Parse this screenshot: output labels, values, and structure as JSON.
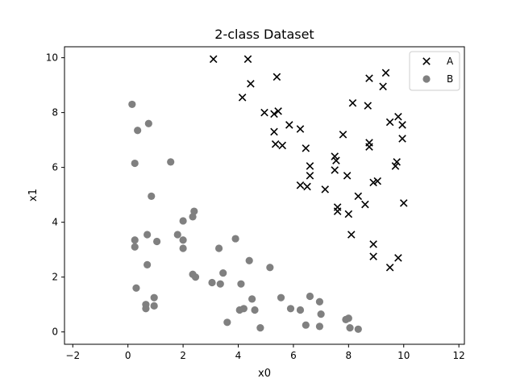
{
  "chart_data": {
    "type": "scatter",
    "title": "2-class Dataset",
    "xlabel": "x0",
    "ylabel": "x1",
    "xlim": [
      -2.3,
      12.2
    ],
    "ylim": [
      -0.45,
      10.4
    ],
    "xticks": [
      -2,
      0,
      2,
      4,
      6,
      8,
      10,
      12
    ],
    "yticks": [
      0,
      2,
      4,
      6,
      8,
      10
    ],
    "xtick_labels": [
      "−2",
      "0",
      "2",
      "4",
      "6",
      "8",
      "10",
      "12"
    ],
    "ytick_labels": [
      "0",
      "2",
      "4",
      "6",
      "8",
      "10"
    ],
    "grid": false,
    "legend_position": "top-right",
    "series": [
      {
        "name": "A",
        "marker": "x",
        "color": "#000000",
        "points": [
          [
            3.1,
            9.95
          ],
          [
            4.35,
            9.95
          ],
          [
            4.15,
            8.55
          ],
          [
            4.45,
            9.05
          ],
          [
            5.4,
            9.3
          ],
          [
            4.95,
            8.0
          ],
          [
            5.3,
            7.95
          ],
          [
            5.45,
            8.05
          ],
          [
            5.85,
            7.55
          ],
          [
            6.25,
            7.4
          ],
          [
            5.3,
            7.3
          ],
          [
            5.35,
            6.85
          ],
          [
            5.6,
            6.8
          ],
          [
            6.45,
            6.7
          ],
          [
            6.6,
            6.05
          ],
          [
            6.6,
            5.7
          ],
          [
            6.25,
            5.35
          ],
          [
            6.5,
            5.3
          ],
          [
            7.15,
            5.2
          ],
          [
            7.5,
            6.4
          ],
          [
            7.55,
            6.25
          ],
          [
            7.5,
            5.9
          ],
          [
            7.95,
            5.7
          ],
          [
            7.8,
            7.2
          ],
          [
            7.6,
            4.55
          ],
          [
            7.6,
            4.4
          ],
          [
            8.0,
            4.3
          ],
          [
            8.35,
            4.95
          ],
          [
            8.6,
            4.65
          ],
          [
            8.1,
            3.55
          ],
          [
            8.15,
            8.35
          ],
          [
            8.75,
            9.25
          ],
          [
            8.7,
            8.25
          ],
          [
            8.75,
            6.9
          ],
          [
            8.75,
            6.75
          ],
          [
            8.9,
            5.45
          ],
          [
            9.05,
            5.5
          ],
          [
            9.25,
            8.95
          ],
          [
            9.35,
            9.45
          ],
          [
            9.5,
            7.65
          ],
          [
            9.8,
            7.85
          ],
          [
            9.95,
            7.55
          ],
          [
            9.75,
            6.2
          ],
          [
            9.7,
            6.05
          ],
          [
            9.95,
            7.05
          ],
          [
            10.0,
            4.7
          ],
          [
            8.9,
            3.2
          ],
          [
            8.9,
            2.75
          ],
          [
            9.8,
            2.7
          ],
          [
            9.5,
            2.35
          ]
        ]
      },
      {
        "name": "B",
        "marker": "circle",
        "color": "#808080",
        "points": [
          [
            0.15,
            8.3
          ],
          [
            0.35,
            7.35
          ],
          [
            0.75,
            7.6
          ],
          [
            0.25,
            6.15
          ],
          [
            0.85,
            4.95
          ],
          [
            1.55,
            6.2
          ],
          [
            2.0,
            4.05
          ],
          [
            2.35,
            4.2
          ],
          [
            2.4,
            4.4
          ],
          [
            1.8,
            3.55
          ],
          [
            2.0,
            3.35
          ],
          [
            2.0,
            3.05
          ],
          [
            0.25,
            3.35
          ],
          [
            0.25,
            3.1
          ],
          [
            0.7,
            3.55
          ],
          [
            1.05,
            3.3
          ],
          [
            0.7,
            2.45
          ],
          [
            0.3,
            1.6
          ],
          [
            0.95,
            1.25
          ],
          [
            0.65,
            1.0
          ],
          [
            0.65,
            0.85
          ],
          [
            0.95,
            0.95
          ],
          [
            2.35,
            2.1
          ],
          [
            2.45,
            2.0
          ],
          [
            3.3,
            3.05
          ],
          [
            3.45,
            2.15
          ],
          [
            3.05,
            1.8
          ],
          [
            3.35,
            1.75
          ],
          [
            3.9,
            3.4
          ],
          [
            4.4,
            2.6
          ],
          [
            4.1,
            1.75
          ],
          [
            4.05,
            0.8
          ],
          [
            4.2,
            0.85
          ],
          [
            3.6,
            0.35
          ],
          [
            4.5,
            1.2
          ],
          [
            4.6,
            0.8
          ],
          [
            4.8,
            0.15
          ],
          [
            5.15,
            2.35
          ],
          [
            5.55,
            1.25
          ],
          [
            5.9,
            0.85
          ],
          [
            6.25,
            0.8
          ],
          [
            6.45,
            0.25
          ],
          [
            6.6,
            1.3
          ],
          [
            6.95,
            1.1
          ],
          [
            7.0,
            0.65
          ],
          [
            6.95,
            0.2
          ],
          [
            7.9,
            0.45
          ],
          [
            8.0,
            0.5
          ],
          [
            8.05,
            0.15
          ],
          [
            8.35,
            0.1
          ]
        ]
      }
    ]
  }
}
